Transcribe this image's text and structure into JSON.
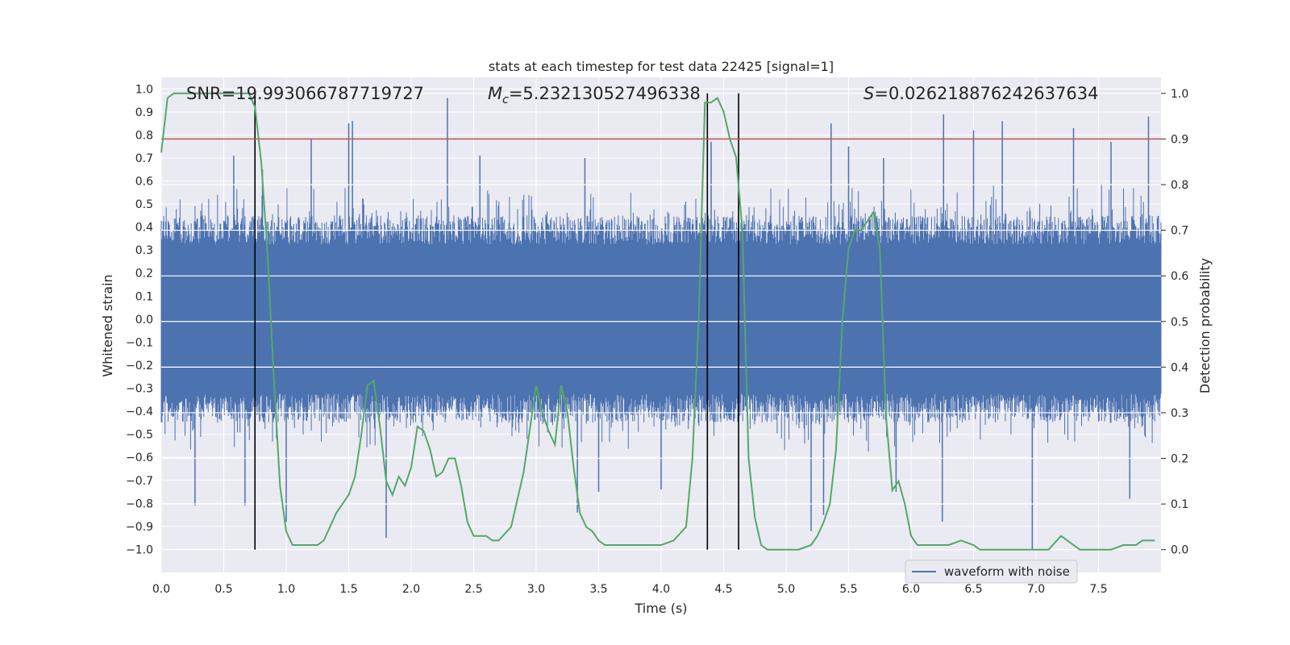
{
  "chart_data": {
    "type": "line",
    "title": "stats at each timestep for test data 22425 [signal=1]",
    "xlabel": "Time (s)",
    "ylabel": "Whitened strain",
    "ylabel_right": "Detection probability",
    "xlim": [
      0.0,
      8.0
    ],
    "ylim": [
      -1.1,
      1.05
    ],
    "ylim_right": [
      -0.05,
      1.035
    ],
    "xticks": [
      "0.0",
      "0.5",
      "1.0",
      "1.5",
      "2.0",
      "2.5",
      "3.0",
      "3.5",
      "4.0",
      "4.5",
      "5.0",
      "5.5",
      "6.0",
      "6.5",
      "7.0",
      "7.5"
    ],
    "yticks": [
      "1.0",
      "0.9",
      "0.8",
      "0.7",
      "0.6",
      "0.5",
      "0.4",
      "0.3",
      "0.2",
      "0.1",
      "0.0",
      "-0.1",
      "-0.2",
      "-0.3",
      "-0.4",
      "-0.5",
      "-0.6",
      "-0.7",
      "-0.8",
      "-0.9",
      "-1.0"
    ],
    "yticks_right": [
      "1.0",
      "0.9",
      "0.8",
      "0.7",
      "0.6",
      "0.5",
      "0.4",
      "0.3",
      "0.2",
      "0.1",
      "0.0"
    ],
    "annotations": {
      "snr": "SNR=19.993066787719727",
      "mc_symbol": "M",
      "mc_sub": "c",
      "mc_value": "=5.232130527496338",
      "s_symbol": "S",
      "s_value": "=0.026218876242637634"
    },
    "legend": {
      "label": "waveform with noise",
      "position": "lower-right"
    },
    "threshold": {
      "value": 0.9,
      "axis": "right",
      "color": "#c44e52"
    },
    "vertical_lines": [
      0.75,
      4.37,
      4.62
    ],
    "waveform": {
      "name": "waveform with noise",
      "color": "#4c72b0",
      "envelope": 0.45,
      "spikes_up": [
        [
          0.58,
          0.71
        ],
        [
          0.81,
          0.65
        ],
        [
          1.2,
          0.78
        ],
        [
          1.5,
          0.85
        ],
        [
          1.53,
          0.86
        ],
        [
          2.29,
          0.96
        ],
        [
          2.55,
          0.71
        ],
        [
          3.39,
          0.7
        ],
        [
          4.4,
          0.77
        ],
        [
          5.36,
          0.85
        ],
        [
          5.5,
          0.75
        ],
        [
          5.78,
          0.7
        ],
        [
          6.26,
          0.89
        ],
        [
          6.5,
          0.82
        ],
        [
          6.73,
          0.86
        ],
        [
          7.3,
          0.83
        ],
        [
          7.6,
          0.77
        ],
        [
          7.9,
          0.88
        ]
      ],
      "spikes_down": [
        [
          0.27,
          -0.81
        ],
        [
          0.67,
          -0.81
        ],
        [
          1.0,
          -0.88
        ],
        [
          1.8,
          -0.95
        ],
        [
          3.33,
          -0.84
        ],
        [
          3.5,
          -0.75
        ],
        [
          4.0,
          -0.74
        ],
        [
          5.2,
          -0.92
        ],
        [
          5.3,
          -0.85
        ],
        [
          5.88,
          -0.75
        ],
        [
          6.25,
          -0.88
        ],
        [
          6.97,
          -1.0
        ],
        [
          7.75,
          -0.78
        ]
      ]
    },
    "probability": {
      "name": "detection probability",
      "color": "#55a868",
      "x": [
        0.0,
        0.05,
        0.1,
        0.2,
        0.3,
        0.4,
        0.5,
        0.6,
        0.7,
        0.75,
        0.8,
        0.85,
        0.9,
        0.95,
        1.0,
        1.05,
        1.1,
        1.2,
        1.25,
        1.3,
        1.35,
        1.4,
        1.45,
        1.5,
        1.55,
        1.6,
        1.65,
        1.7,
        1.75,
        1.8,
        1.85,
        1.9,
        1.95,
        2.0,
        2.05,
        2.1,
        2.15,
        2.2,
        2.25,
        2.3,
        2.35,
        2.4,
        2.45,
        2.5,
        2.55,
        2.6,
        2.65,
        2.7,
        2.8,
        2.9,
        3.0,
        3.05,
        3.1,
        3.15,
        3.2,
        3.25,
        3.3,
        3.35,
        3.4,
        3.45,
        3.5,
        3.55,
        3.6,
        3.7,
        3.8,
        3.9,
        4.0,
        4.1,
        4.2,
        4.25,
        4.3,
        4.35,
        4.4,
        4.45,
        4.5,
        4.55,
        4.6,
        4.65,
        4.7,
        4.75,
        4.8,
        4.85,
        4.9,
        5.0,
        5.1,
        5.2,
        5.25,
        5.3,
        5.35,
        5.4,
        5.45,
        5.5,
        5.55,
        5.6,
        5.65,
        5.7,
        5.75,
        5.8,
        5.85,
        5.9,
        5.95,
        6.0,
        6.05,
        6.1,
        6.2,
        6.3,
        6.4,
        6.5,
        6.55,
        6.6,
        6.7,
        6.8,
        6.9,
        7.0,
        7.1,
        7.2,
        7.25,
        7.3,
        7.35,
        7.4,
        7.5,
        7.6,
        7.7,
        7.8,
        7.85,
        7.9,
        7.95
      ],
      "y": [
        0.87,
        0.99,
        1.0,
        1.0,
        1.0,
        1.0,
        1.0,
        1.0,
        1.0,
        0.97,
        0.85,
        0.65,
        0.38,
        0.14,
        0.04,
        0.01,
        0.01,
        0.01,
        0.01,
        0.02,
        0.05,
        0.08,
        0.1,
        0.12,
        0.16,
        0.25,
        0.36,
        0.37,
        0.27,
        0.15,
        0.12,
        0.16,
        0.14,
        0.18,
        0.27,
        0.26,
        0.22,
        0.16,
        0.17,
        0.2,
        0.2,
        0.14,
        0.06,
        0.03,
        0.03,
        0.03,
        0.02,
        0.02,
        0.05,
        0.17,
        0.36,
        0.3,
        0.26,
        0.23,
        0.36,
        0.3,
        0.18,
        0.08,
        0.05,
        0.04,
        0.02,
        0.01,
        0.01,
        0.01,
        0.01,
        0.01,
        0.01,
        0.02,
        0.05,
        0.2,
        0.5,
        0.98,
        0.98,
        0.99,
        0.96,
        0.9,
        0.86,
        0.7,
        0.2,
        0.07,
        0.01,
        0.0,
        0.0,
        0.0,
        0.0,
        0.01,
        0.03,
        0.06,
        0.1,
        0.22,
        0.5,
        0.66,
        0.7,
        0.7,
        0.72,
        0.74,
        0.66,
        0.29,
        0.13,
        0.15,
        0.1,
        0.03,
        0.01,
        0.01,
        0.01,
        0.01,
        0.02,
        0.01,
        0.0,
        0.0,
        0.0,
        0.0,
        0.0,
        0.0,
        0.0,
        0.03,
        0.02,
        0.01,
        0.0,
        0.0,
        0.0,
        0.0,
        0.01,
        0.01,
        0.02,
        0.02,
        0.02
      ],
      "axis": "right"
    }
  }
}
